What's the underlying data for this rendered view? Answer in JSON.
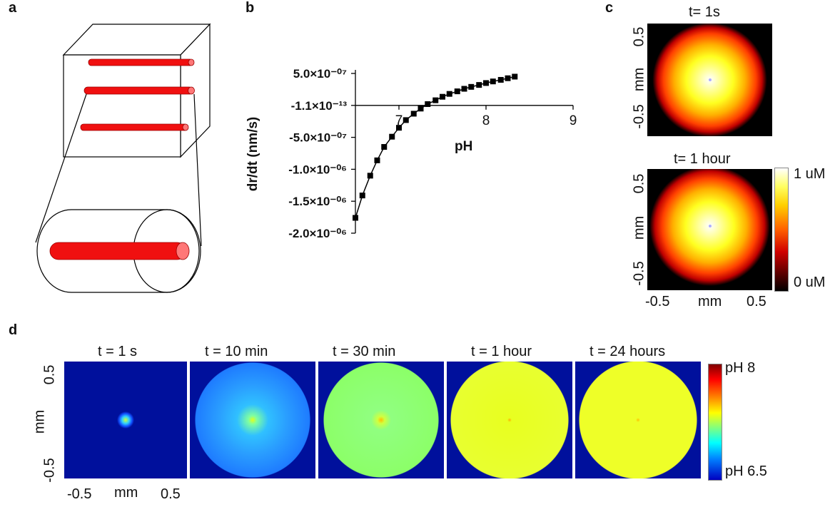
{
  "panels": {
    "a": {
      "label": "a"
    },
    "b": {
      "label": "b"
    },
    "c": {
      "label": "c"
    },
    "d": {
      "label": "d"
    }
  },
  "chart_data": [
    {
      "type": "scatter",
      "panel": "b",
      "xlabel": "pH",
      "ylabel": "dr/dt (nm/s)",
      "x_ticks": [
        "7",
        "8",
        "9"
      ],
      "y_ticks": [
        "5.0×10⁻⁰⁷",
        "-1.1×10⁻¹³",
        "-5.0×10⁻⁰⁷",
        "-1.0×10⁻⁰⁶",
        "-1.5×10⁻⁰⁶",
        "-2.0×10⁻⁰⁶"
      ],
      "y_tick_values": [
        5e-07,
        -1.1e-13,
        -5e-07,
        -1e-06,
        -1.5e-06,
        -2e-06
      ],
      "xlim": [
        6.5,
        9
      ],
      "ylim": [
        -2e-06,
        5e-07
      ],
      "x": [
        6.5,
        6.58,
        6.67,
        6.75,
        6.83,
        6.92,
        7.0,
        7.08,
        7.17,
        7.25,
        7.33,
        7.42,
        7.5,
        7.58,
        7.67,
        7.75,
        7.83,
        7.92,
        8.0,
        8.08,
        8.17,
        8.25,
        8.33
      ],
      "y": [
        -1.76e-06,
        -1.41e-06,
        -1.1e-06,
        -8.6e-07,
        -6.5e-07,
        -4.9e-07,
        -3.5e-07,
        -2.3e-07,
        -1.3e-07,
        -5e-08,
        2e-08,
        8e-08,
        1.35e-07,
        1.8e-07,
        2.2e-07,
        2.6e-07,
        2.9e-07,
        3.2e-07,
        3.5e-07,
        3.75e-07,
        4e-07,
        4.25e-07,
        4.5e-07
      ],
      "series": [
        {
          "marker": "square",
          "line": true
        }
      ],
      "grid": false,
      "legend": "none"
    }
  ],
  "panel_c": {
    "maps": [
      {
        "title": "t= 1s"
      },
      {
        "title": "t= 1 hour"
      }
    ],
    "y_ticks": [
      "0.5",
      "-0.5"
    ],
    "y_label": "mm",
    "x_ticks": [
      "-0.5",
      "0.5"
    ],
    "x_label": "mm",
    "colorbar": {
      "max_label": "1 uM",
      "min_label": "0 uM"
    }
  },
  "panel_d": {
    "maps": [
      {
        "title": "t = 1 s",
        "level": 0.0
      },
      {
        "title": "t = 10 min",
        "level": 0.25
      },
      {
        "title": "t = 30 min",
        "level": 0.5
      },
      {
        "title": "t = 1 hour",
        "level": 0.65
      },
      {
        "title": "t = 24 hours",
        "level": 0.66
      }
    ],
    "y_ticks": [
      "0.5",
      "-0.5"
    ],
    "y_label": "mm",
    "x_ticks": [
      "-0.5",
      "0.5"
    ],
    "x_label": "mm",
    "colorbar": {
      "max_label": "pH 8",
      "min_label": "pH 6.5"
    },
    "colors": {
      "background": "#00109c"
    }
  }
}
